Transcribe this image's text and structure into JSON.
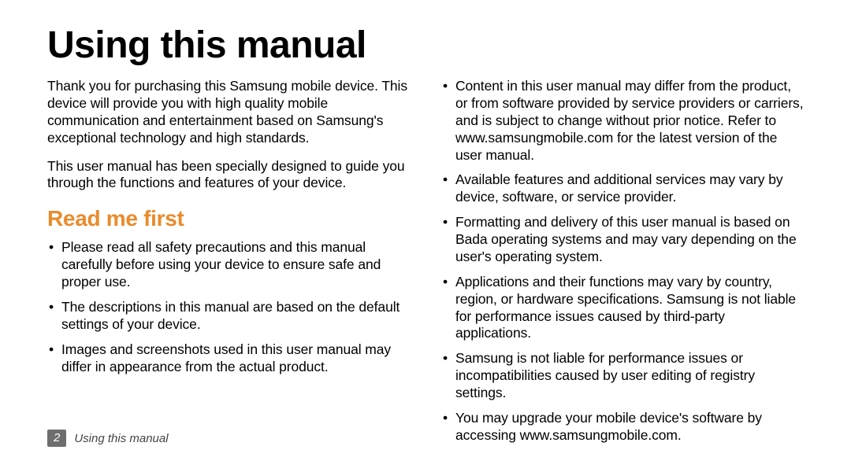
{
  "title": "Using this manual",
  "intro": {
    "p1": "Thank you for purchasing this Samsung mobile device. This device will provide you with high quality mobile communication and entertainment based on Samsung's exceptional technology and high standards.",
    "p2": "This user manual has been specially designed to guide you through the functions and features of your device."
  },
  "section": {
    "heading": "Read me first",
    "leftBullets": [
      "Please read all safety precautions and this manual carefully before using your device to ensure safe and proper use.",
      "The descriptions in this manual are based on the default settings of your device.",
      "Images and screenshots used in this user manual may differ in appearance from the actual product."
    ],
    "rightBullets": [
      "Content in this user manual may differ from the product, or from software provided by service providers or carriers, and is subject to change without prior notice. Refer to www.samsungmobile.com for the latest version of the user manual.",
      "Available features and additional services may vary by device, software, or service provider.",
      "Formatting and delivery of this user manual is based on Bada operating systems and may vary depending on the user's operating system.",
      "Applications and their functions may vary by country, region, or hardware specifications. Samsung is not liable for performance issues caused by third-party applications.",
      "Samsung is not liable for performance issues or incompatibilities caused by user editing of registry settings.",
      "You may upgrade your mobile device's software by accessing www.samsungmobile.com."
    ]
  },
  "footer": {
    "pageNumber": "2",
    "label": "Using this manual"
  },
  "style": {
    "accentColor": "#e98b2c",
    "pageBadgeBg": "#6e6e6e",
    "bodyFontSize": 17.5,
    "titleFontSize": 48,
    "subheadFontSize": 28
  }
}
